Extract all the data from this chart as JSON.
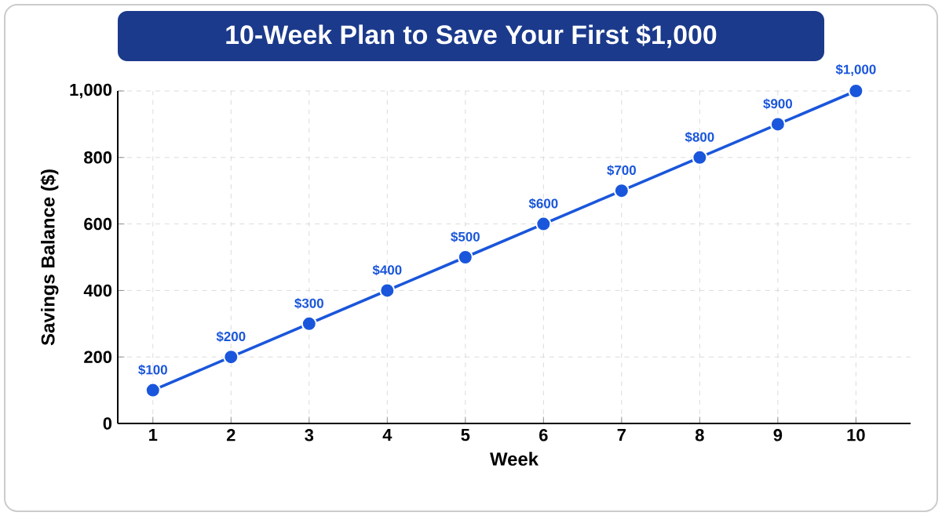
{
  "chart_data": {
    "type": "line",
    "title": "10-Week Plan to Save Your First $1,000",
    "xlabel": "Week",
    "ylabel": "Savings Balance ($)",
    "categories": [
      "1",
      "2",
      "3",
      "4",
      "5",
      "6",
      "7",
      "8",
      "9",
      "10"
    ],
    "values": [
      100,
      200,
      300,
      400,
      500,
      600,
      700,
      800,
      900,
      1000
    ],
    "value_labels": [
      "$100",
      "$200",
      "$300",
      "$400",
      "$500",
      "$600",
      "$700",
      "$800",
      "$900",
      "$1,000"
    ],
    "color": "#1a56db",
    "marker": "circle",
    "line_style": "solid",
    "grid": true,
    "ylim": [
      0,
      1000
    ],
    "yticks": [
      0,
      200,
      400,
      600,
      800,
      {
        "value": 1000,
        "label": "1,000"
      }
    ]
  }
}
